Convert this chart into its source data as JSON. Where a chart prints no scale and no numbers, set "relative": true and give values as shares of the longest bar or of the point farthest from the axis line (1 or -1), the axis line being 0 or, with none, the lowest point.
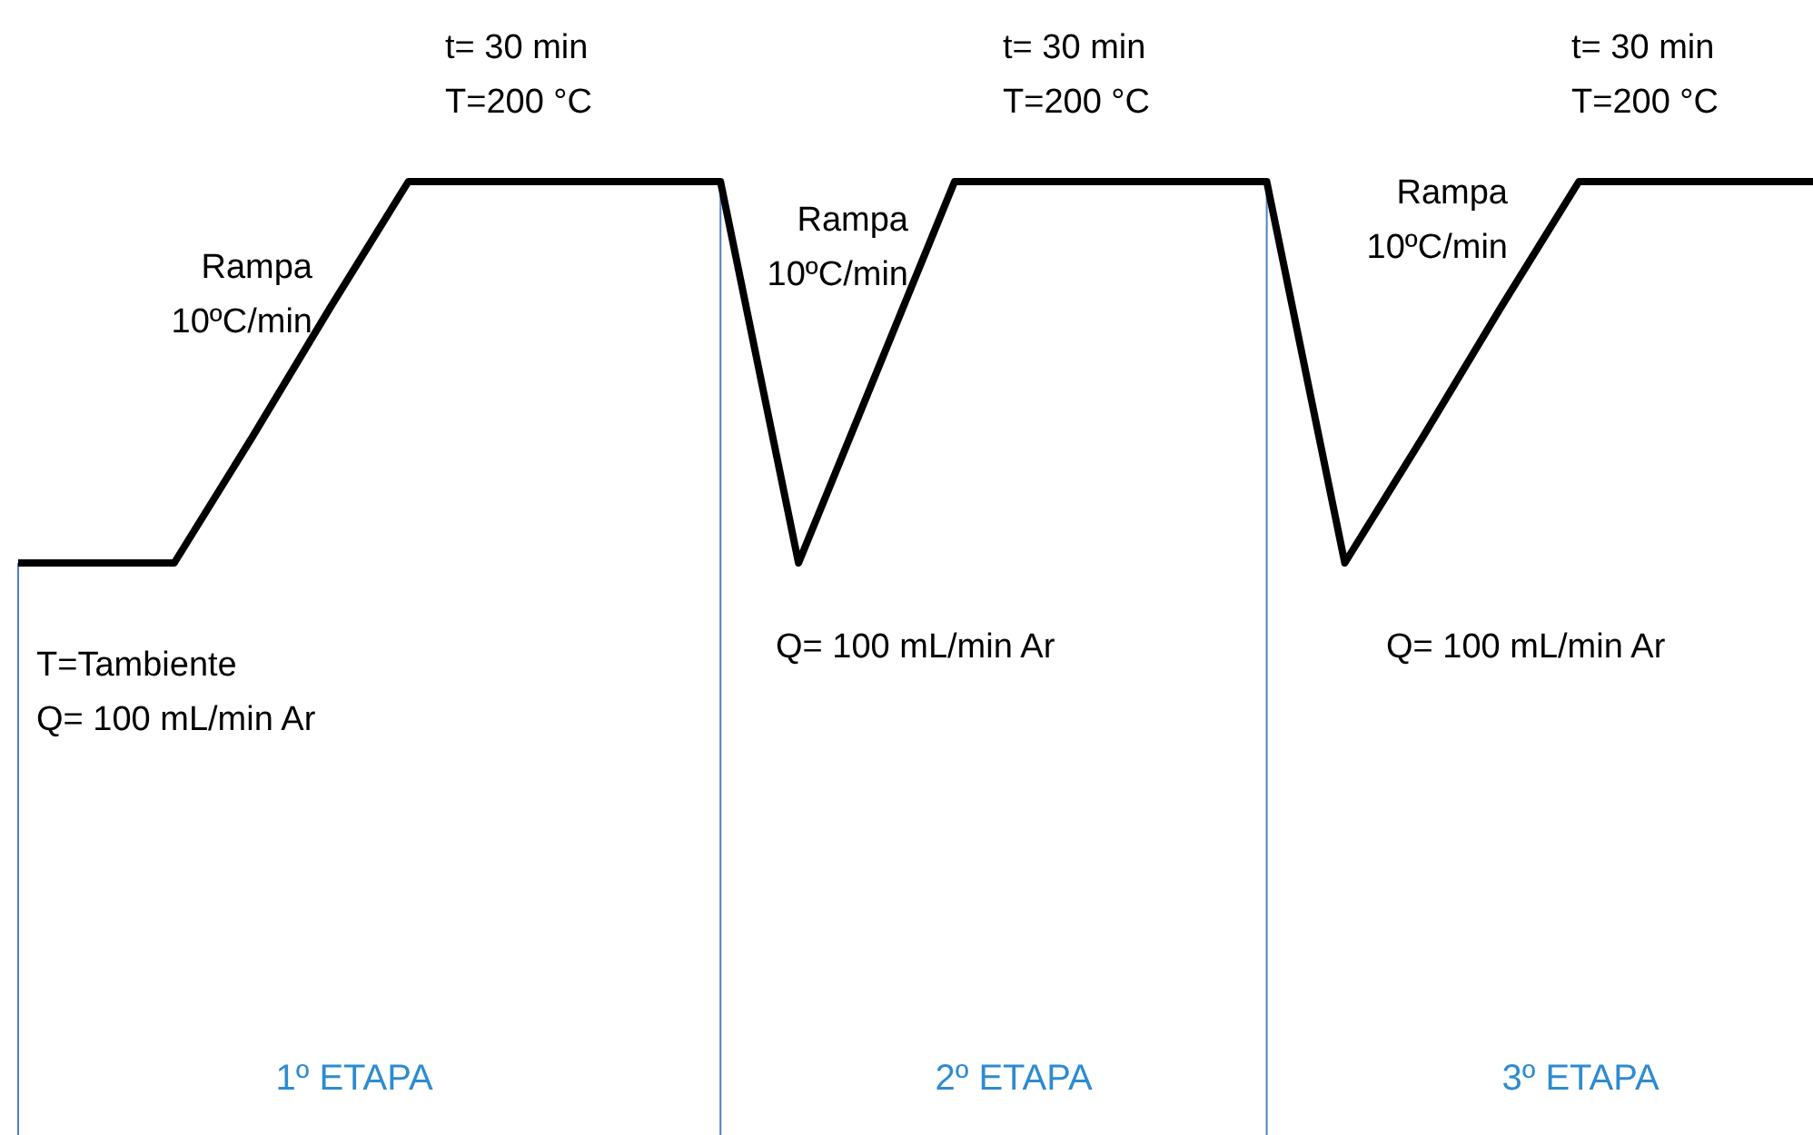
{
  "chart_data": {
    "type": "line",
    "relative": true,
    "marker": "none",
    "line_style": "solid",
    "categories": [
      null,
      null,
      null,
      null,
      null,
      null,
      null,
      null,
      null,
      null,
      null,
      null,
      null,
      null,
      null,
      null,
      null,
      null,
      null,
      null,
      null,
      null,
      null,
      null
    ],
    "series": [
      {
        "color": "#000000",
        "values": [
          0,
          0,
          0,
          0.33,
          0.67,
          1,
          1,
          1,
          1,
          1,
          0,
          0.5,
          1,
          1,
          1,
          1,
          1,
          0,
          0.33,
          0.67,
          1,
          1,
          1,
          1
        ]
      }
    ],
    "annotations": [
      "t= 30 min\nT=200 °C",
      "t= 30 min\nT=200 °C",
      "t= 30 min\nT=200 °C",
      "Rampa\n10ºC/min",
      "Rampa\n10ºC/min",
      "Rampa\n10ºC/min",
      "T=Tambiente\nQ= 100 mL/min Ar",
      "Q= 100 mL/min Ar",
      "Q= 100 mL/min Ar",
      "1º ETAPA",
      "2º ETAPA",
      "3º ETAPA"
    ]
  }
}
